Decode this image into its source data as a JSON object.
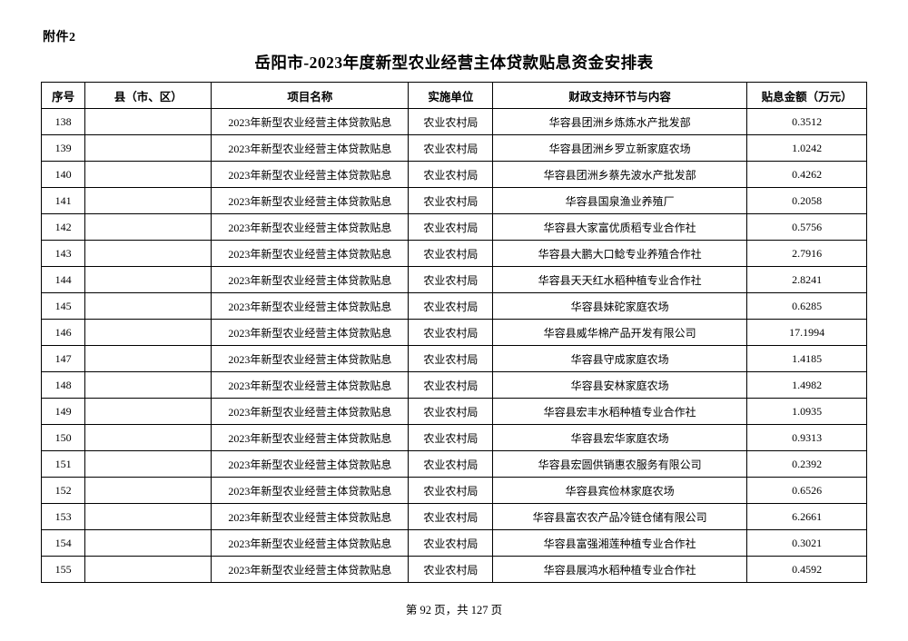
{
  "page": {
    "attachment_label": "附件2",
    "title": "岳阳市-2023年度新型农业经营主体贷款贴息资金安排表",
    "footer": "第 92 页，共 127 页"
  },
  "table": {
    "headers": [
      "序号",
      "县（市、区）",
      "项目名称",
      "实施单位",
      "财政支持环节与内容",
      "贴息金额（万元）"
    ],
    "rows": [
      {
        "seq": "138",
        "county": "",
        "project": "2023年新型农业经营主体贷款贴息",
        "unit": "农业农村局",
        "content": "华容县团洲乡炼炼水产批发部",
        "amount": "0.3512"
      },
      {
        "seq": "139",
        "county": "",
        "project": "2023年新型农业经营主体贷款贴息",
        "unit": "农业农村局",
        "content": "华容县团洲乡罗立新家庭农场",
        "amount": "1.0242"
      },
      {
        "seq": "140",
        "county": "",
        "project": "2023年新型农业经营主体贷款贴息",
        "unit": "农业农村局",
        "content": "华容县团洲乡蔡先波水产批发部",
        "amount": "0.4262"
      },
      {
        "seq": "141",
        "county": "",
        "project": "2023年新型农业经营主体贷款贴息",
        "unit": "农业农村局",
        "content": "华容县国泉渔业养殖厂",
        "amount": "0.2058"
      },
      {
        "seq": "142",
        "county": "",
        "project": "2023年新型农业经营主体贷款贴息",
        "unit": "农业农村局",
        "content": "华容县大家富优质稻专业合作社",
        "amount": "0.5756"
      },
      {
        "seq": "143",
        "county": "",
        "project": "2023年新型农业经营主体贷款贴息",
        "unit": "农业农村局",
        "content": "华容县大鹏大口鲶专业养殖合作社",
        "amount": "2.7916"
      },
      {
        "seq": "144",
        "county": "",
        "project": "2023年新型农业经营主体贷款贴息",
        "unit": "农业农村局",
        "content": "华容县天天红水稻种植专业合作社",
        "amount": "2.8241"
      },
      {
        "seq": "145",
        "county": "",
        "project": "2023年新型农业经营主体贷款贴息",
        "unit": "农业农村局",
        "content": "华容县妹砣家庭农场",
        "amount": "0.6285"
      },
      {
        "seq": "146",
        "county": "",
        "project": "2023年新型农业经营主体贷款贴息",
        "unit": "农业农村局",
        "content": "华容县威华棉产品开发有限公司",
        "amount": "17.1994"
      },
      {
        "seq": "147",
        "county": "",
        "project": "2023年新型农业经营主体贷款贴息",
        "unit": "农业农村局",
        "content": "华容县守成家庭农场",
        "amount": "1.4185"
      },
      {
        "seq": "148",
        "county": "",
        "project": "2023年新型农业经营主体贷款贴息",
        "unit": "农业农村局",
        "content": "华容县安林家庭农场",
        "amount": "1.4982"
      },
      {
        "seq": "149",
        "county": "",
        "project": "2023年新型农业经营主体贷款贴息",
        "unit": "农业农村局",
        "content": "华容县宏丰水稻种植专业合作社",
        "amount": "1.0935"
      },
      {
        "seq": "150",
        "county": "",
        "project": "2023年新型农业经营主体贷款贴息",
        "unit": "农业农村局",
        "content": "华容县宏华家庭农场",
        "amount": "0.9313"
      },
      {
        "seq": "151",
        "county": "",
        "project": "2023年新型农业经营主体贷款贴息",
        "unit": "农业农村局",
        "content": "华容县宏圆供销惠农服务有限公司",
        "amount": "0.2392"
      },
      {
        "seq": "152",
        "county": "",
        "project": "2023年新型农业经营主体贷款贴息",
        "unit": "农业农村局",
        "content": "华容县宾俭林家庭农场",
        "amount": "0.6526"
      },
      {
        "seq": "153",
        "county": "",
        "project": "2023年新型农业经营主体贷款贴息",
        "unit": "农业农村局",
        "content": "华容县富农农产品冷链仓储有限公司",
        "amount": "6.2661"
      },
      {
        "seq": "154",
        "county": "",
        "project": "2023年新型农业经营主体贷款贴息",
        "unit": "农业农村局",
        "content": "华容县富强湘莲种植专业合作社",
        "amount": "0.3021"
      },
      {
        "seq": "155",
        "county": "",
        "project": "2023年新型农业经营主体贷款贴息",
        "unit": "农业农村局",
        "content": "华容县展鸿水稻种植专业合作社",
        "amount": "0.4592"
      }
    ]
  }
}
